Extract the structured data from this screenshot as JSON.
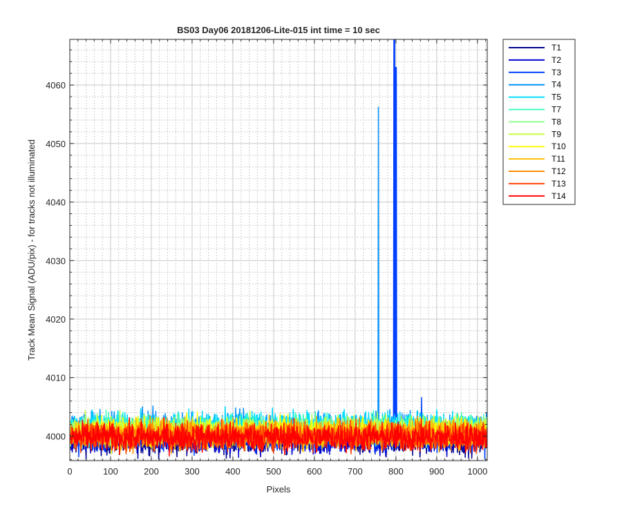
{
  "chart_data": {
    "type": "line",
    "title": "BS03 Day06 20181206-Lite-015 int time = 10 sec",
    "xlabel": "Pixels",
    "ylabel": "Track Mean Signal (ADU/pix) - for tracks not illuminated",
    "xlim": [
      0,
      1024
    ],
    "ylim": [
      3995.8,
      4067.8
    ],
    "xticks": [
      0,
      100,
      200,
      300,
      400,
      500,
      600,
      700,
      800,
      900,
      1000
    ],
    "yticks": [
      4000,
      4010,
      4020,
      4030,
      4040,
      4050,
      4060
    ],
    "grid": true,
    "minor_grid": true,
    "legend_position": "outside-right",
    "noise_amplitude_adu": 2.2,
    "series": [
      {
        "name": "T1",
        "color": "#00008F",
        "offset": -0.8,
        "spikes": []
      },
      {
        "name": "T2",
        "color": "#0000D0",
        "offset": -0.5,
        "spikes": []
      },
      {
        "name": "T3",
        "color": "#0040FF",
        "offset": -0.3,
        "spikes": [
          {
            "x": 795,
            "y": 4068
          },
          {
            "x": 797,
            "y": 4068
          },
          {
            "x": 799,
            "y": 4063
          },
          {
            "x": 801,
            "y": 4063
          },
          {
            "x": 863,
            "y": 4006.6
          }
        ]
      },
      {
        "name": "T4",
        "color": "#0090FF",
        "offset": 1.6,
        "spikes": [
          {
            "x": 757,
            "y": 4056.2
          }
        ]
      },
      {
        "name": "T5",
        "color": "#00DDFF",
        "offset": 1.8,
        "spikes": []
      },
      {
        "name": "T7",
        "color": "#40FFC0",
        "offset": 1.2,
        "spikes": []
      },
      {
        "name": "T8",
        "color": "#90FF90",
        "offset": 0.9,
        "spikes": []
      },
      {
        "name": "T9",
        "color": "#C8FF40",
        "offset": 1.0,
        "spikes": []
      },
      {
        "name": "T10",
        "color": "#FFFF00",
        "offset": 0.6,
        "spikes": []
      },
      {
        "name": "T11",
        "color": "#FFC000",
        "offset": 0.4,
        "spikes": []
      },
      {
        "name": "T12",
        "color": "#FF8C00",
        "offset": 0.2,
        "spikes": []
      },
      {
        "name": "T13",
        "color": "#FF4000",
        "offset": 0.0,
        "spikes": []
      },
      {
        "name": "T14",
        "color": "#FF0000",
        "offset": -0.2,
        "spikes": []
      }
    ]
  }
}
